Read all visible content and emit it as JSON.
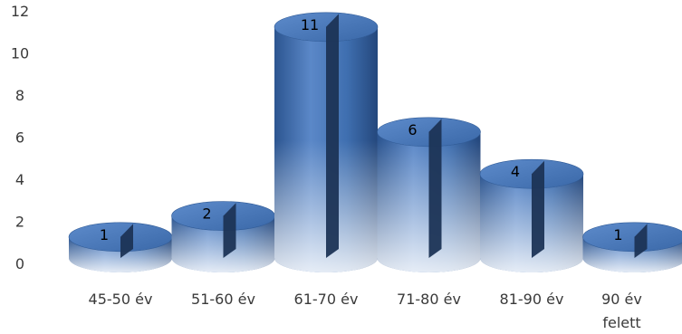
{
  "chart_data": {
    "type": "bar",
    "style": "3d-cylinder",
    "title": "",
    "xlabel": "",
    "ylabel": "",
    "categories": [
      [
        "45-50 év"
      ],
      [
        "51-60 év"
      ],
      [
        "61-70 év"
      ],
      [
        "71-80 év"
      ],
      [
        "81-90 év"
      ],
      [
        "90 év",
        "felett"
      ]
    ],
    "values": [
      1,
      2,
      11,
      6,
      4,
      1
    ],
    "ylim": [
      0,
      12
    ],
    "yticks": [
      0,
      2,
      4,
      6,
      8,
      10,
      12
    ],
    "grid": false,
    "legend": "none",
    "data_labels": true,
    "colors": {
      "bar_main": "#3f6fb0",
      "bar_light": "#6b97d2",
      "bar_dark": "#1f4070",
      "cut_face": "#1c3456",
      "text": "#3a3a3a"
    }
  }
}
